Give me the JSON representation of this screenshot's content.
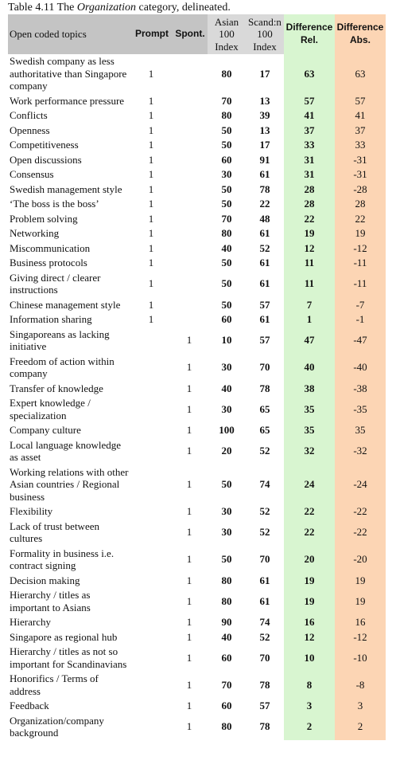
{
  "title": {
    "prefix": "Table 4.11 The",
    "emphasis": "Organization",
    "suffix": "category, delineated."
  },
  "table": {
    "header": {
      "topics": "Open coded topics",
      "prompt": "Prompt",
      "spont": "Spont.",
      "asian": "Asian 100 Index",
      "scand": "Scand:n 100 Index",
      "rel": "Difference Rel.",
      "abs": "Difference Abs."
    },
    "rows": [
      [
        "Swedish company as less authoritative than Singapore company",
        1,
        null,
        80,
        17,
        63,
        63
      ],
      [
        "Work performance pressure",
        1,
        null,
        70,
        13,
        57,
        57
      ],
      [
        "Conflicts",
        1,
        null,
        80,
        39,
        41,
        41
      ],
      [
        "Openness",
        1,
        null,
        50,
        13,
        37,
        37
      ],
      [
        "Competitiveness",
        1,
        null,
        50,
        17,
        33,
        33
      ],
      [
        "Open discussions",
        1,
        null,
        60,
        91,
        31,
        -31
      ],
      [
        "Consensus",
        1,
        null,
        30,
        61,
        31,
        -31
      ],
      [
        "Swedish management style",
        1,
        null,
        50,
        78,
        28,
        -28
      ],
      [
        "‘The boss is the boss’",
        1,
        null,
        50,
        22,
        28,
        28
      ],
      [
        "Problem solving",
        1,
        null,
        70,
        48,
        22,
        22
      ],
      [
        "Networking",
        1,
        null,
        80,
        61,
        19,
        19
      ],
      [
        "Miscommunication",
        1,
        null,
        40,
        52,
        12,
        -12
      ],
      [
        "Business protocols",
        1,
        null,
        50,
        61,
        11,
        -11
      ],
      [
        "Giving direct / clearer instructions",
        1,
        null,
        50,
        61,
        11,
        -11
      ],
      [
        "Chinese management style",
        1,
        null,
        50,
        57,
        7,
        -7
      ],
      [
        "Information sharing",
        1,
        null,
        60,
        61,
        1,
        -1
      ],
      [
        "Singaporeans as lacking initiative",
        null,
        1,
        10,
        57,
        47,
        -47
      ],
      [
        "Freedom of action within company",
        null,
        1,
        30,
        70,
        40,
        -40
      ],
      [
        "Transfer of knowledge",
        null,
        1,
        40,
        78,
        38,
        -38
      ],
      [
        "Expert knowledge / specialization",
        null,
        1,
        30,
        65,
        35,
        -35
      ],
      [
        "Company culture",
        null,
        1,
        100,
        65,
        35,
        35
      ],
      [
        "Local language knowledge as asset",
        null,
        1,
        20,
        52,
        32,
        -32
      ],
      [
        "Working relations with other Asian countries / Regional business",
        null,
        1,
        50,
        74,
        24,
        -24
      ],
      [
        "Flexibility",
        null,
        1,
        30,
        52,
        22,
        -22
      ],
      [
        "Lack of trust between cultures",
        null,
        1,
        30,
        52,
        22,
        -22
      ],
      [
        "Formality in business i.e. contract signing",
        null,
        1,
        50,
        70,
        20,
        -20
      ],
      [
        "Decision making",
        null,
        1,
        80,
        61,
        19,
        19
      ],
      [
        "Hierarchy / titles as important to Asians",
        null,
        1,
        80,
        61,
        19,
        19
      ],
      [
        "Hierarchy",
        null,
        1,
        90,
        74,
        16,
        16
      ],
      [
        "Singapore as regional hub",
        null,
        1,
        40,
        52,
        12,
        -12
      ],
      [
        "Hierarchy / titles as not so important for Scandinavians",
        null,
        1,
        60,
        70,
        10,
        -10
      ],
      [
        "Honorifics / Terms of address",
        null,
        1,
        70,
        78,
        8,
        -8
      ],
      [
        "Feedback",
        null,
        1,
        60,
        57,
        3,
        3
      ],
      [
        "Organization/company background",
        null,
        1,
        80,
        78,
        2,
        2
      ]
    ]
  }
}
